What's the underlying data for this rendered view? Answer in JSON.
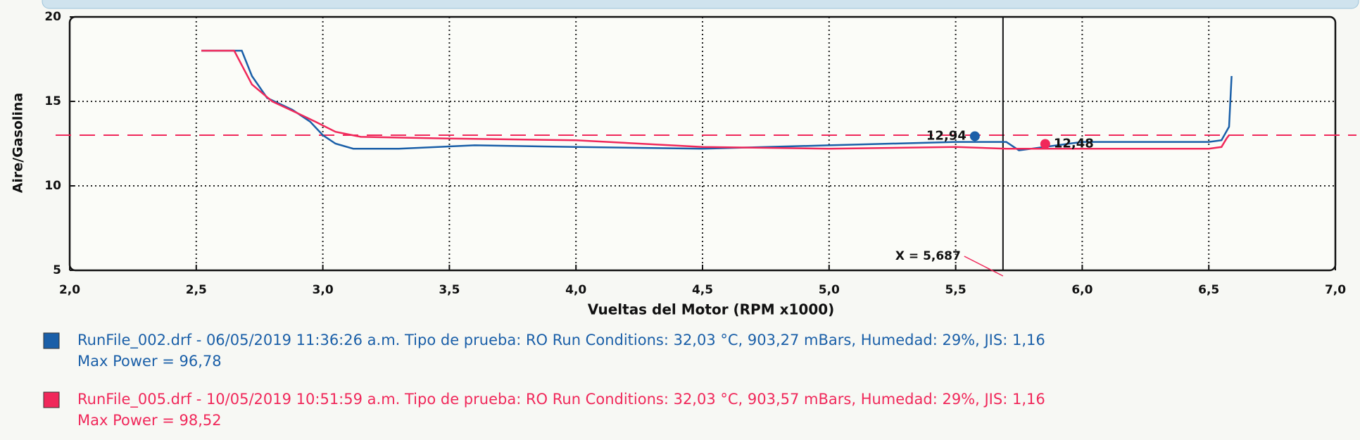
{
  "chart_data": {
    "type": "line",
    "xlabel": "Vueltas del Motor (RPM x1000)",
    "ylabel": "Aire/Gasolina",
    "xlim": [
      2.0,
      7.0
    ],
    "ylim": [
      5,
      20
    ],
    "xticks": [
      {
        "value": 2.0,
        "label": "2,0"
      },
      {
        "value": 2.5,
        "label": "2,5"
      },
      {
        "value": 3.0,
        "label": "3,0"
      },
      {
        "value": 3.5,
        "label": "3,5"
      },
      {
        "value": 4.0,
        "label": "4,0"
      },
      {
        "value": 4.5,
        "label": "4,5"
      },
      {
        "value": 5.0,
        "label": "5,0"
      },
      {
        "value": 5.5,
        "label": "5,5"
      },
      {
        "value": 6.0,
        "label": "6,0"
      },
      {
        "value": 6.5,
        "label": "6,5"
      },
      {
        "value": 7.0,
        "label": "7,0"
      }
    ],
    "yticks": [
      5,
      10,
      15,
      20
    ],
    "grid": true,
    "reference_line": {
      "value": 13,
      "color": "#f0285a"
    },
    "cursor": {
      "value": 5.687,
      "label": "X = 5,687"
    },
    "series": [
      {
        "name": "RunFile_002.drf - 06/05/2019 11:36:26 a.m.  Tipo de prueba: RO  Run Conditions: 32,03 °C, 903,27 mBars,  Humedad: 29%, JIS: 1,16",
        "max_power": "Max Power = 96,78",
        "color": "#1a5fa8",
        "readout": {
          "value": 12.94,
          "label": "12,94"
        },
        "x": [
          2.52,
          2.68,
          2.72,
          2.78,
          2.88,
          2.95,
          3.0,
          3.05,
          3.12,
          3.3,
          3.6,
          4.0,
          4.5,
          5.0,
          5.5,
          5.7,
          5.75,
          6.0,
          6.5,
          6.55,
          6.58,
          6.59
        ],
        "values": [
          18,
          18,
          16.5,
          15.2,
          14.5,
          13.8,
          13.0,
          12.5,
          12.2,
          12.2,
          12.4,
          12.3,
          12.2,
          12.4,
          12.6,
          12.6,
          12.1,
          12.6,
          12.6,
          12.7,
          13.5,
          16.5
        ]
      },
      {
        "name": "RunFile_005.drf - 10/05/2019 10:51:59 a.m.  Tipo de prueba: RO  Run Conditions: 32,03 °C, 903,57 mBars,  Humedad: 29%, JIS: 1,16",
        "max_power": "Max Power = 98,52",
        "color": "#f0285a",
        "readout": {
          "value": 12.48,
          "label": "12,48"
        },
        "x": [
          2.52,
          2.65,
          2.72,
          2.8,
          2.9,
          2.97,
          3.05,
          3.15,
          3.5,
          4.0,
          4.5,
          5.0,
          5.5,
          5.7,
          6.0,
          6.5,
          6.55,
          6.57,
          6.58
        ],
        "values": [
          18,
          18,
          16.0,
          15.0,
          14.3,
          13.8,
          13.2,
          12.9,
          12.8,
          12.7,
          12.3,
          12.2,
          12.3,
          12.2,
          12.2,
          12.2,
          12.3,
          12.8,
          13.0
        ]
      }
    ]
  }
}
